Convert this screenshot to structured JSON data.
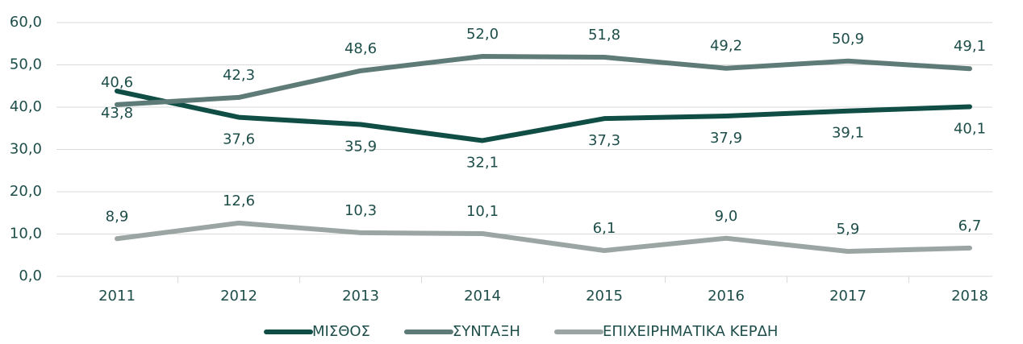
{
  "chart_data": {
    "type": "line",
    "categories": [
      "2011",
      "2012",
      "2013",
      "2014",
      "2015",
      "2016",
      "2017",
      "2018"
    ],
    "series": [
      {
        "name": "ΜΙΣΘΟΣ",
        "color": "#0f4d45",
        "values": [
          43.8,
          37.6,
          35.9,
          32.1,
          37.3,
          37.9,
          39.1,
          40.1
        ],
        "value_labels": [
          "43,8",
          "37,6",
          "35,9",
          "32,1",
          "37,3",
          "37,9",
          "39,1",
          "40,1"
        ]
      },
      {
        "name": "ΣΥΝΤΑΞΗ",
        "color": "#5f7b78",
        "values": [
          40.6,
          42.3,
          48.6,
          52.0,
          51.8,
          49.2,
          50.9,
          49.1
        ],
        "value_labels": [
          "40,6",
          "42,3",
          "48,6",
          "52,0",
          "51,8",
          "49,2",
          "50,9",
          "49,1"
        ]
      },
      {
        "name": "ΕΠΙΧΕΙΡΗΜΑΤΙΚΑ ΚΕΡΔΗ",
        "color": "#9aa5a4",
        "values": [
          8.9,
          12.6,
          10.3,
          10.1,
          6.1,
          9.0,
          5.9,
          6.7
        ],
        "value_labels": [
          "8,9",
          "12,6",
          "10,3",
          "10,1",
          "6,1",
          "9,0",
          "5,9",
          "6,7"
        ]
      }
    ],
    "ylim": [
      0,
      60
    ],
    "yticks": [
      {
        "value": 0,
        "label": "0,0"
      },
      {
        "value": 10,
        "label": "10,0"
      },
      {
        "value": 20,
        "label": "20,0"
      },
      {
        "value": 30,
        "label": "30,0"
      },
      {
        "value": 40,
        "label": "40,0"
      },
      {
        "value": 50,
        "label": "50,0"
      },
      {
        "value": 60,
        "label": "60,0"
      }
    ],
    "grid": true,
    "legend": "bottom"
  }
}
